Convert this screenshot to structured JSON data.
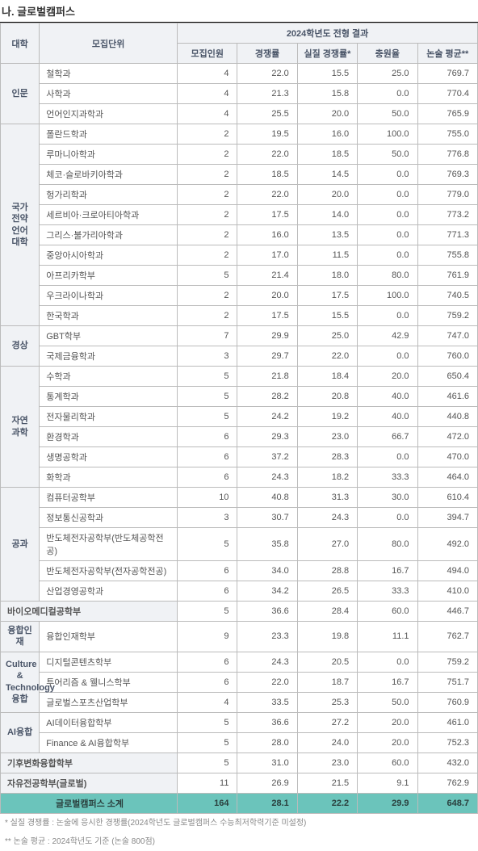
{
  "title": "나. 글로벌캠퍼스",
  "header": {
    "col1": "대학",
    "col2": "모집단위",
    "group": "2024학년도 전형 결과",
    "cols": [
      "모집인원",
      "경쟁률",
      "실질 경쟁률*",
      "충원율",
      "논술 평균**"
    ]
  },
  "groups": [
    {
      "label": "인문",
      "rows": [
        {
          "dept": "철학과",
          "v": [
            "4",
            "22.0",
            "15.5",
            "25.0",
            "769.7"
          ]
        },
        {
          "dept": "사학과",
          "v": [
            "4",
            "21.3",
            "15.8",
            "0.0",
            "770.4"
          ]
        },
        {
          "dept": "언어인지과학과",
          "v": [
            "4",
            "25.5",
            "20.0",
            "50.0",
            "765.9"
          ]
        }
      ]
    },
    {
      "label": "국가\n전약\n언어\n대학",
      "rows": [
        {
          "dept": "폴란드학과",
          "v": [
            "2",
            "19.5",
            "16.0",
            "100.0",
            "755.0"
          ]
        },
        {
          "dept": "루마니아학과",
          "v": [
            "2",
            "22.0",
            "18.5",
            "50.0",
            "776.8"
          ]
        },
        {
          "dept": "체코·슬로바키아학과",
          "v": [
            "2",
            "18.5",
            "14.5",
            "0.0",
            "769.3"
          ]
        },
        {
          "dept": "헝가리학과",
          "v": [
            "2",
            "22.0",
            "20.0",
            "0.0",
            "779.0"
          ]
        },
        {
          "dept": "세르비아·크로아티아학과",
          "v": [
            "2",
            "17.5",
            "14.0",
            "0.0",
            "773.2"
          ]
        },
        {
          "dept": "그리스·불가리아학과",
          "v": [
            "2",
            "16.0",
            "13.5",
            "0.0",
            "771.3"
          ]
        },
        {
          "dept": "중앙아시아학과",
          "v": [
            "2",
            "17.0",
            "11.5",
            "0.0",
            "755.8"
          ]
        },
        {
          "dept": "아프리카학부",
          "v": [
            "5",
            "21.4",
            "18.0",
            "80.0",
            "761.9"
          ]
        },
        {
          "dept": "우크라이나학과",
          "v": [
            "2",
            "20.0",
            "17.5",
            "100.0",
            "740.5"
          ]
        },
        {
          "dept": "한국학과",
          "v": [
            "2",
            "17.5",
            "15.5",
            "0.0",
            "759.2"
          ]
        }
      ]
    },
    {
      "label": "경상",
      "rows": [
        {
          "dept": "GBT학부",
          "v": [
            "7",
            "29.9",
            "25.0",
            "42.9",
            "747.0"
          ]
        },
        {
          "dept": "국제금융학과",
          "v": [
            "3",
            "29.7",
            "22.0",
            "0.0",
            "760.0"
          ]
        }
      ]
    },
    {
      "label": "자연\n과학",
      "rows": [
        {
          "dept": "수학과",
          "v": [
            "5",
            "21.8",
            "18.4",
            "20.0",
            "650.4"
          ]
        },
        {
          "dept": "통계학과",
          "v": [
            "5",
            "28.2",
            "20.8",
            "40.0",
            "461.6"
          ]
        },
        {
          "dept": "전자물리학과",
          "v": [
            "5",
            "24.2",
            "19.2",
            "40.0",
            "440.8"
          ]
        },
        {
          "dept": "환경학과",
          "v": [
            "6",
            "29.3",
            "23.0",
            "66.7",
            "472.0"
          ]
        },
        {
          "dept": "생명공학과",
          "v": [
            "6",
            "37.2",
            "28.3",
            "0.0",
            "470.0"
          ]
        },
        {
          "dept": "화학과",
          "v": [
            "6",
            "24.3",
            "18.2",
            "33.3",
            "464.0"
          ]
        }
      ]
    },
    {
      "label": "공과",
      "rows": [
        {
          "dept": "컴퓨터공학부",
          "v": [
            "10",
            "40.8",
            "31.3",
            "30.0",
            "610.4"
          ]
        },
        {
          "dept": "정보통신공학과",
          "v": [
            "3",
            "30.7",
            "24.3",
            "0.0",
            "394.7"
          ]
        },
        {
          "dept": "반도체전자공학부(반도체공학전공)",
          "v": [
            "5",
            "35.8",
            "27.0",
            "80.0",
            "492.0"
          ]
        },
        {
          "dept": "반도체전자공학부(전자공학전공)",
          "v": [
            "6",
            "34.0",
            "28.8",
            "16.7",
            "494.0"
          ]
        },
        {
          "dept": "산업경영공학과",
          "v": [
            "6",
            "34.2",
            "26.5",
            "33.3",
            "410.0"
          ]
        }
      ]
    },
    {
      "label": "",
      "span": true,
      "rows": [
        {
          "dept": "바이오메디컬공학부",
          "full": true,
          "v": [
            "5",
            "36.6",
            "28.4",
            "60.0",
            "446.7"
          ]
        }
      ]
    },
    {
      "label": "융합인재",
      "rows": [
        {
          "dept": "융합인재학부",
          "v": [
            "9",
            "23.3",
            "19.8",
            "11.1",
            "762.7"
          ]
        }
      ]
    },
    {
      "label": "Culture &\nTechnology\n융합",
      "rows": [
        {
          "dept": "디지털콘텐츠학부",
          "v": [
            "6",
            "24.3",
            "20.5",
            "0.0",
            "759.2"
          ]
        },
        {
          "dept": "투어리즘 & 웰니스학부",
          "v": [
            "6",
            "22.0",
            "18.7",
            "16.7",
            "751.7"
          ]
        },
        {
          "dept": "글로벌스포츠산업학부",
          "v": [
            "4",
            "33.5",
            "25.3",
            "50.0",
            "760.9"
          ]
        }
      ]
    },
    {
      "label": "AI융합",
      "rows": [
        {
          "dept": "AI데이터융합학부",
          "v": [
            "5",
            "36.6",
            "27.2",
            "20.0",
            "461.0"
          ]
        },
        {
          "dept": "Finance & AI융합학부",
          "v": [
            "5",
            "28.0",
            "24.0",
            "20.0",
            "752.3"
          ]
        }
      ]
    },
    {
      "label": "",
      "span": true,
      "rows": [
        {
          "dept": "기후변화융합학부",
          "full": true,
          "v": [
            "5",
            "31.0",
            "23.0",
            "60.0",
            "432.0"
          ]
        }
      ]
    },
    {
      "label": "",
      "span": true,
      "rows": [
        {
          "dept": "자유전공학부(글로벌)",
          "full": true,
          "v": [
            "11",
            "26.9",
            "21.5",
            "9.1",
            "762.9"
          ]
        }
      ]
    }
  ],
  "subtotal": {
    "label": "글로벌캠퍼스 소계",
    "v": [
      "164",
      "28.1",
      "22.2",
      "29.9",
      "648.7"
    ]
  },
  "footnotes": [
    "* 실질 경쟁률 : 논술에 응시한 경쟁률(2024학년도 글로벌캠퍼스 수능최저학력기준 미설정)",
    "** 논술 평균 : 2024학년도 기준 (논술 800점)"
  ]
}
